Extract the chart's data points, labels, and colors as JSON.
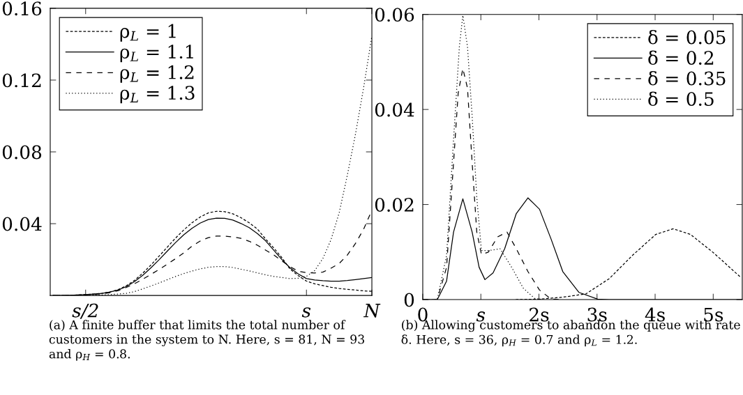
{
  "chart_data": [
    {
      "type": "line",
      "ylim": [
        0,
        0.16
      ],
      "categories": [
        null,
        null,
        null,
        null,
        "s/2",
        null,
        null,
        null,
        null,
        null,
        null,
        null,
        null,
        null,
        null,
        null,
        null,
        null,
        null,
        null,
        null,
        null,
        null,
        null,
        null,
        null,
        null,
        null,
        null,
        null,
        null,
        "s",
        null,
        null,
        null,
        null,
        null,
        null,
        null,
        "N"
      ],
      "yticks": [
        0.04,
        0.08,
        0.12,
        0.16
      ],
      "legend": "top left",
      "grid": false,
      "marker": "none",
      "annotations": [
        "(a) A finite buffer that limits the total number of customers in the system to N. Here, s = 81, N = 93 and ρ$_{H}$ = 0.8."
      ],
      "series": [
        {
          "name": "ρ$_{L}$ = 1",
          "color": "#000000",
          "line_style": "dashed",
          "values": [
            0,
            0,
            0.0001,
            0.0003,
            0.0005,
            0.0008,
            0.0012,
            0.002,
            0.0033,
            0.0055,
            0.0085,
            0.0125,
            0.017,
            0.022,
            0.027,
            0.032,
            0.0365,
            0.0405,
            0.0437,
            0.046,
            0.0469,
            0.0467,
            0.0455,
            0.0433,
            0.0405,
            0.037,
            0.0315,
            0.0265,
            0.021,
            0.0147,
            0.011,
            0.008,
            0.0065,
            0.0055,
            0.0046,
            0.0039,
            0.0034,
            0.003,
            0.0026,
            0.0023
          ]
        },
        {
          "name": "ρ$_{L}$ = 1.1",
          "color": "#000000",
          "line_style": "solid",
          "values": [
            0,
            0,
            0.0001,
            0.0003,
            0.0005,
            0.0008,
            0.0012,
            0.0019,
            0.0031,
            0.005,
            0.0078,
            0.0113,
            0.0155,
            0.02,
            0.0248,
            0.0295,
            0.0338,
            0.0374,
            0.0403,
            0.0423,
            0.0431,
            0.043,
            0.042,
            0.0401,
            0.0378,
            0.0345,
            0.0305,
            0.0252,
            0.02,
            0.0154,
            0.012,
            0.0094,
            0.0086,
            0.0082,
            0.008,
            0.008,
            0.0083,
            0.0088,
            0.0094,
            0.01
          ]
        },
        {
          "name": "ρ$_{L}$ = 1.2",
          "color": "#000000",
          "line_style": "dashed",
          "values": [
            0,
            0,
            0,
            0.0002,
            0.0004,
            0.0006,
            0.0009,
            0.0015,
            0.0027,
            0.0045,
            0.0066,
            0.0091,
            0.0118,
            0.0145,
            0.0175,
            0.0205,
            0.0237,
            0.0275,
            0.0303,
            0.0322,
            0.0331,
            0.0331,
            0.0326,
            0.0318,
            0.0302,
            0.028,
            0.0253,
            0.0226,
            0.0192,
            0.016,
            0.0135,
            0.0127,
            0.0125,
            0.013,
            0.0152,
            0.0178,
            0.0225,
            0.029,
            0.037,
            0.0475
          ]
        },
        {
          "name": "ρ$_{L}$ = 1.3",
          "color": "#000000",
          "line_style": "dotted",
          "values": [
            0,
            0,
            0,
            0,
            0.0001,
            0.0002,
            0.0003,
            0.0005,
            0.0008,
            0.0012,
            0.0022,
            0.0037,
            0.0053,
            0.007,
            0.0088,
            0.0106,
            0.0122,
            0.0136,
            0.0148,
            0.0157,
            0.0161,
            0.0161,
            0.0156,
            0.0146,
            0.0137,
            0.0126,
            0.0115,
            0.0106,
            0.01,
            0.0094,
            0.0096,
            0.0107,
            0.0138,
            0.0205,
            0.031,
            0.046,
            0.067,
            0.09,
            0.116,
            0.1446
          ]
        }
      ]
    },
    {
      "type": "line",
      "xlim": [
        0,
        5.5
      ],
      "ylim": [
        0,
        0.06
      ],
      "xticks": [
        0,
        {
          "value": 1,
          "label": "s"
        },
        {
          "value": 2,
          "label": "2s"
        },
        {
          "value": 3,
          "label": "3s"
        },
        {
          "value": 4,
          "label": "4s"
        },
        {
          "value": 5,
          "label": "5s"
        }
      ],
      "yticks": [
        0,
        0.02,
        0.04,
        0.06
      ],
      "legend": "top right",
      "grid": false,
      "marker": "none",
      "annotations": [
        "(b) Allowing customers to abandon the queue with rate δ. Here, s = 36, ρ$_{H}$ = 0.7 and ρ$_{L}$ = 1.2."
      ],
      "series": [
        {
          "name": "δ = 0.05",
          "color": "#000000",
          "line_style": "dashed",
          "x": [
            1.6,
            2.01,
            2.41,
            2.81,
            3.21,
            3.61,
            4.01,
            4.31,
            4.61,
            5.01,
            5.48
          ],
          "values": [
            0,
            0.0001,
            0.0005,
            0.0012,
            0.0044,
            0.0093,
            0.0137,
            0.0149,
            0.0137,
            0.0098,
            0.0046
          ]
        },
        {
          "name": "δ = 0.2",
          "color": "#000000",
          "line_style": "solid",
          "x": [
            0,
            0.25,
            0.41,
            0.53,
            0.69,
            0.85,
            0.97,
            1.07,
            1.21,
            1.41,
            1.61,
            1.81,
            2.01,
            2.21,
            2.41,
            2.69,
            3.01,
            3.21,
            5.5
          ],
          "values": [
            0,
            0,
            0.0039,
            0.0142,
            0.0212,
            0.0142,
            0.0068,
            0.0042,
            0.0056,
            0.0107,
            0.0181,
            0.0214,
            0.019,
            0.0127,
            0.0059,
            0.0015,
            0.0001,
            0,
            0
          ]
        },
        {
          "name": "δ = 0.35",
          "color": "#000000",
          "line_style": "dashed",
          "x": [
            0,
            0.25,
            0.41,
            0.53,
            0.61,
            0.69,
            0.77,
            0.85,
            0.93,
            1.01,
            1.13,
            1.29,
            1.45,
            1.61,
            1.81,
            2.01,
            2.21,
            2.41
          ],
          "values": [
            0,
            0,
            0.0068,
            0.0288,
            0.0435,
            0.0486,
            0.0445,
            0.0288,
            0.0142,
            0.0095,
            0.01,
            0.0132,
            0.0142,
            0.0107,
            0.0059,
            0.002,
            0.0001,
            0
          ]
        },
        {
          "name": "δ = 0.5",
          "color": "#000000",
          "line_style": "dotted",
          "x": [
            0,
            0.25,
            0.41,
            0.53,
            0.63,
            0.69,
            0.77,
            0.85,
            0.93,
            1.01,
            1.13,
            1.33,
            1.53,
            1.73,
            1.93,
            2.08
          ],
          "values": [
            0,
            0,
            0.0093,
            0.0337,
            0.0532,
            0.0598,
            0.0532,
            0.0386,
            0.0215,
            0.0103,
            0.0103,
            0.0107,
            0.0068,
            0.0024,
            0.0002,
            0
          ]
        }
      ]
    }
  ]
}
